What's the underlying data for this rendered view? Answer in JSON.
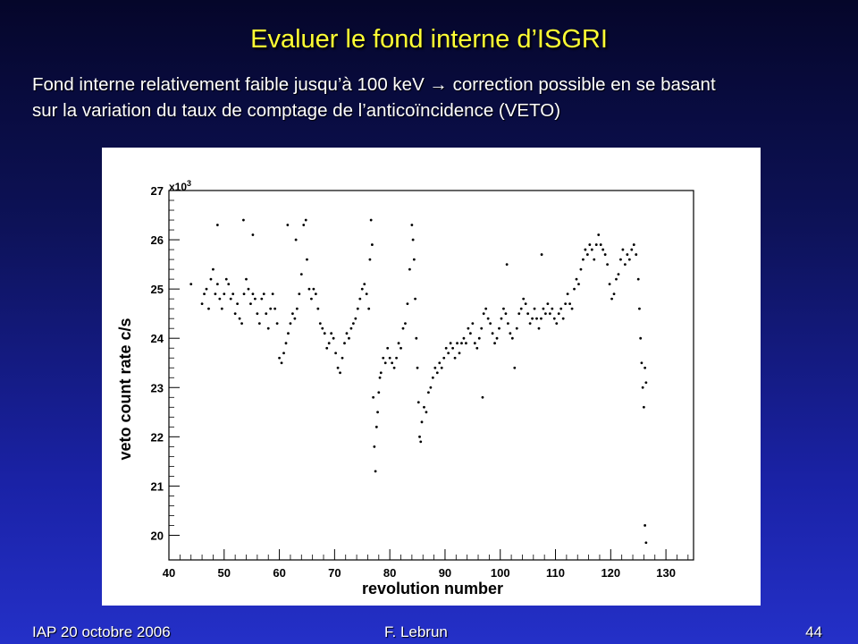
{
  "slide": {
    "title": "Evaluer le fond interne d’ISGRI",
    "subtitle_line1": "Fond interne relativement faible jusqu’à 100 keV → correction possible en se basant",
    "subtitle_line2": "sur la variation du taux de comptage de l’anticoïncidence (VETO)"
  },
  "footer": {
    "left": "IAP 20 octobre 2006",
    "center": "F. Lebrun",
    "right": "44"
  },
  "colors": {
    "title": "#ffff33",
    "text": "#ffffff",
    "points": "#000000"
  },
  "chart_data": {
    "type": "scatter",
    "title": "",
    "xlabel": "revolution number",
    "ylabel": "veto count rate c/s",
    "y_multiplier_label": "x10",
    "y_multiplier_exp": "3",
    "xlim": [
      40,
      135
    ],
    "ylim": [
      19.5,
      27
    ],
    "x_ticks": [
      40,
      50,
      60,
      70,
      80,
      90,
      100,
      110,
      120,
      130
    ],
    "y_ticks": [
      20,
      21,
      22,
      23,
      24,
      25,
      26,
      27
    ],
    "grid": false,
    "legend": "none",
    "series": [
      {
        "points": [
          [
            46.0,
            24.7
          ],
          [
            46.4,
            24.9
          ],
          [
            46.8,
            25.0
          ],
          [
            47.2,
            24.6
          ],
          [
            47.6,
            25.2
          ],
          [
            48.0,
            25.4
          ],
          [
            48.4,
            24.9
          ],
          [
            48.8,
            25.1
          ],
          [
            49.2,
            24.8
          ],
          [
            49.6,
            24.6
          ],
          [
            50.0,
            24.9
          ],
          [
            50.4,
            25.2
          ],
          [
            50.8,
            25.1
          ],
          [
            51.2,
            24.8
          ],
          [
            51.6,
            24.9
          ],
          [
            52.0,
            24.5
          ],
          [
            52.4,
            24.7
          ],
          [
            52.8,
            24.4
          ],
          [
            53.2,
            24.3
          ],
          [
            53.6,
            24.9
          ],
          [
            54.0,
            25.2
          ],
          [
            54.4,
            25.0
          ],
          [
            54.8,
            24.7
          ],
          [
            55.2,
            24.9
          ],
          [
            55.6,
            24.8
          ],
          [
            56.0,
            24.5
          ],
          [
            56.4,
            24.3
          ],
          [
            56.8,
            24.8
          ],
          [
            57.2,
            24.9
          ],
          [
            57.6,
            24.5
          ],
          [
            58.0,
            24.2
          ],
          [
            58.4,
            24.6
          ],
          [
            58.8,
            24.9
          ],
          [
            59.2,
            24.6
          ],
          [
            59.6,
            24.3
          ],
          [
            60.0,
            23.6
          ],
          [
            60.4,
            23.5
          ],
          [
            60.8,
            23.7
          ],
          [
            61.2,
            23.9
          ],
          [
            61.6,
            24.1
          ],
          [
            62.0,
            24.3
          ],
          [
            62.4,
            24.5
          ],
          [
            62.8,
            24.4
          ],
          [
            63.2,
            24.6
          ],
          [
            63.6,
            24.9
          ],
          [
            64.0,
            25.3
          ],
          [
            64.4,
            26.3
          ],
          [
            64.8,
            26.4
          ],
          [
            65.0,
            25.6
          ],
          [
            65.4,
            25.0
          ],
          [
            65.8,
            24.8
          ],
          [
            66.2,
            25.0
          ],
          [
            66.6,
            24.9
          ],
          [
            67.0,
            24.6
          ],
          [
            67.4,
            24.3
          ],
          [
            67.8,
            24.2
          ],
          [
            68.2,
            24.1
          ],
          [
            68.6,
            23.8
          ],
          [
            69.0,
            23.9
          ],
          [
            69.4,
            24.1
          ],
          [
            69.8,
            24.0
          ],
          [
            70.2,
            23.7
          ],
          [
            70.6,
            23.4
          ],
          [
            71.0,
            23.3
          ],
          [
            71.4,
            23.6
          ],
          [
            71.8,
            23.9
          ],
          [
            72.2,
            24.1
          ],
          [
            72.6,
            24.0
          ],
          [
            73.0,
            24.2
          ],
          [
            73.4,
            24.3
          ],
          [
            73.8,
            24.4
          ],
          [
            74.2,
            24.6
          ],
          [
            74.6,
            24.8
          ],
          [
            75.0,
            25.0
          ],
          [
            75.4,
            25.1
          ],
          [
            75.8,
            24.9
          ],
          [
            76.2,
            24.6
          ],
          [
            76.4,
            25.6
          ],
          [
            76.6,
            26.4
          ],
          [
            76.8,
            25.9
          ],
          [
            77.0,
            22.8
          ],
          [
            77.2,
            21.8
          ],
          [
            77.4,
            21.3
          ],
          [
            77.6,
            22.2
          ],
          [
            77.8,
            22.5
          ],
          [
            78.0,
            22.9
          ],
          [
            78.4,
            23.3
          ],
          [
            78.8,
            23.6
          ],
          [
            79.2,
            23.5
          ],
          [
            79.6,
            23.8
          ],
          [
            80.0,
            23.6
          ],
          [
            80.4,
            23.5
          ],
          [
            80.8,
            23.4
          ],
          [
            81.2,
            23.6
          ],
          [
            81.6,
            23.9
          ],
          [
            82.0,
            23.8
          ],
          [
            82.4,
            24.2
          ],
          [
            82.8,
            24.3
          ],
          [
            83.2,
            24.7
          ],
          [
            83.6,
            25.4
          ],
          [
            84.0,
            26.3
          ],
          [
            84.2,
            26.0
          ],
          [
            84.4,
            25.6
          ],
          [
            84.6,
            24.8
          ],
          [
            84.8,
            24.0
          ],
          [
            85.0,
            23.4
          ],
          [
            85.2,
            22.7
          ],
          [
            85.4,
            22.0
          ],
          [
            85.6,
            21.9
          ],
          [
            85.8,
            22.3
          ],
          [
            86.2,
            22.6
          ],
          [
            86.6,
            22.5
          ],
          [
            87.0,
            22.9
          ],
          [
            87.4,
            23.0
          ],
          [
            87.8,
            23.2
          ],
          [
            88.2,
            23.4
          ],
          [
            88.6,
            23.3
          ],
          [
            89.0,
            23.5
          ],
          [
            89.4,
            23.4
          ],
          [
            89.8,
            23.6
          ],
          [
            90.2,
            23.8
          ],
          [
            90.6,
            23.7
          ],
          [
            91.0,
            23.9
          ],
          [
            91.4,
            23.8
          ],
          [
            91.8,
            23.6
          ],
          [
            92.2,
            23.9
          ],
          [
            92.6,
            23.7
          ],
          [
            93.0,
            23.9
          ],
          [
            93.4,
            24.0
          ],
          [
            93.8,
            23.9
          ],
          [
            94.2,
            24.2
          ],
          [
            94.6,
            24.1
          ],
          [
            95.0,
            24.3
          ],
          [
            95.4,
            23.9
          ],
          [
            95.8,
            23.8
          ],
          [
            96.2,
            24.0
          ],
          [
            96.6,
            24.2
          ],
          [
            97.0,
            24.5
          ],
          [
            97.4,
            24.6
          ],
          [
            97.8,
            24.4
          ],
          [
            98.2,
            24.3
          ],
          [
            98.6,
            24.1
          ],
          [
            99.0,
            23.9
          ],
          [
            99.4,
            24.0
          ],
          [
            99.8,
            24.2
          ],
          [
            100.2,
            24.4
          ],
          [
            100.6,
            24.6
          ],
          [
            101.0,
            24.5
          ],
          [
            101.4,
            24.3
          ],
          [
            101.8,
            24.1
          ],
          [
            102.2,
            24.0
          ],
          [
            102.6,
            23.4
          ],
          [
            103.0,
            24.2
          ],
          [
            103.4,
            24.5
          ],
          [
            103.8,
            24.6
          ],
          [
            104.2,
            24.8
          ],
          [
            104.6,
            24.7
          ],
          [
            105.0,
            24.5
          ],
          [
            105.4,
            24.3
          ],
          [
            105.8,
            24.4
          ],
          [
            106.2,
            24.6
          ],
          [
            106.6,
            24.4
          ],
          [
            107.0,
            24.2
          ],
          [
            107.4,
            24.4
          ],
          [
            107.8,
            24.6
          ],
          [
            108.2,
            24.5
          ],
          [
            108.6,
            24.7
          ],
          [
            109.0,
            24.5
          ],
          [
            109.4,
            24.6
          ],
          [
            109.8,
            24.4
          ],
          [
            110.2,
            24.3
          ],
          [
            110.6,
            24.5
          ],
          [
            111.0,
            24.6
          ],
          [
            111.4,
            24.4
          ],
          [
            111.8,
            24.7
          ],
          [
            112.2,
            24.9
          ],
          [
            112.6,
            24.7
          ],
          [
            113.0,
            24.6
          ],
          [
            113.4,
            25.0
          ],
          [
            113.8,
            25.2
          ],
          [
            114.2,
            25.1
          ],
          [
            114.6,
            25.4
          ],
          [
            115.0,
            25.6
          ],
          [
            115.4,
            25.8
          ],
          [
            115.8,
            25.7
          ],
          [
            116.2,
            25.9
          ],
          [
            116.6,
            25.8
          ],
          [
            117.0,
            25.6
          ],
          [
            117.4,
            25.9
          ],
          [
            117.8,
            26.1
          ],
          [
            118.2,
            25.9
          ],
          [
            118.6,
            25.8
          ],
          [
            119.0,
            25.7
          ],
          [
            119.4,
            25.5
          ],
          [
            119.8,
            25.1
          ],
          [
            120.2,
            24.8
          ],
          [
            120.6,
            24.9
          ],
          [
            121.0,
            25.2
          ],
          [
            121.4,
            25.3
          ],
          [
            121.8,
            25.6
          ],
          [
            122.2,
            25.8
          ],
          [
            122.6,
            25.5
          ],
          [
            123.0,
            25.7
          ],
          [
            123.4,
            25.6
          ],
          [
            123.8,
            25.8
          ],
          [
            124.2,
            25.9
          ],
          [
            124.6,
            25.7
          ],
          [
            125.0,
            25.2
          ],
          [
            125.2,
            24.6
          ],
          [
            125.4,
            24.0
          ],
          [
            125.6,
            23.5
          ],
          [
            125.8,
            23.0
          ],
          [
            126.0,
            22.6
          ],
          [
            126.2,
            23.4
          ],
          [
            126.4,
            23.1
          ],
          [
            126.2,
            20.2
          ],
          [
            126.4,
            19.85
          ],
          [
            44.0,
            25.1
          ],
          [
            48.8,
            26.3
          ],
          [
            53.5,
            26.4
          ],
          [
            61.5,
            26.3
          ],
          [
            78.2,
            23.2
          ],
          [
            96.8,
            22.8
          ],
          [
            101.2,
            25.5
          ],
          [
            107.5,
            25.7
          ],
          [
            55.2,
            26.1
          ],
          [
            63.0,
            26.0
          ]
        ]
      }
    ]
  }
}
